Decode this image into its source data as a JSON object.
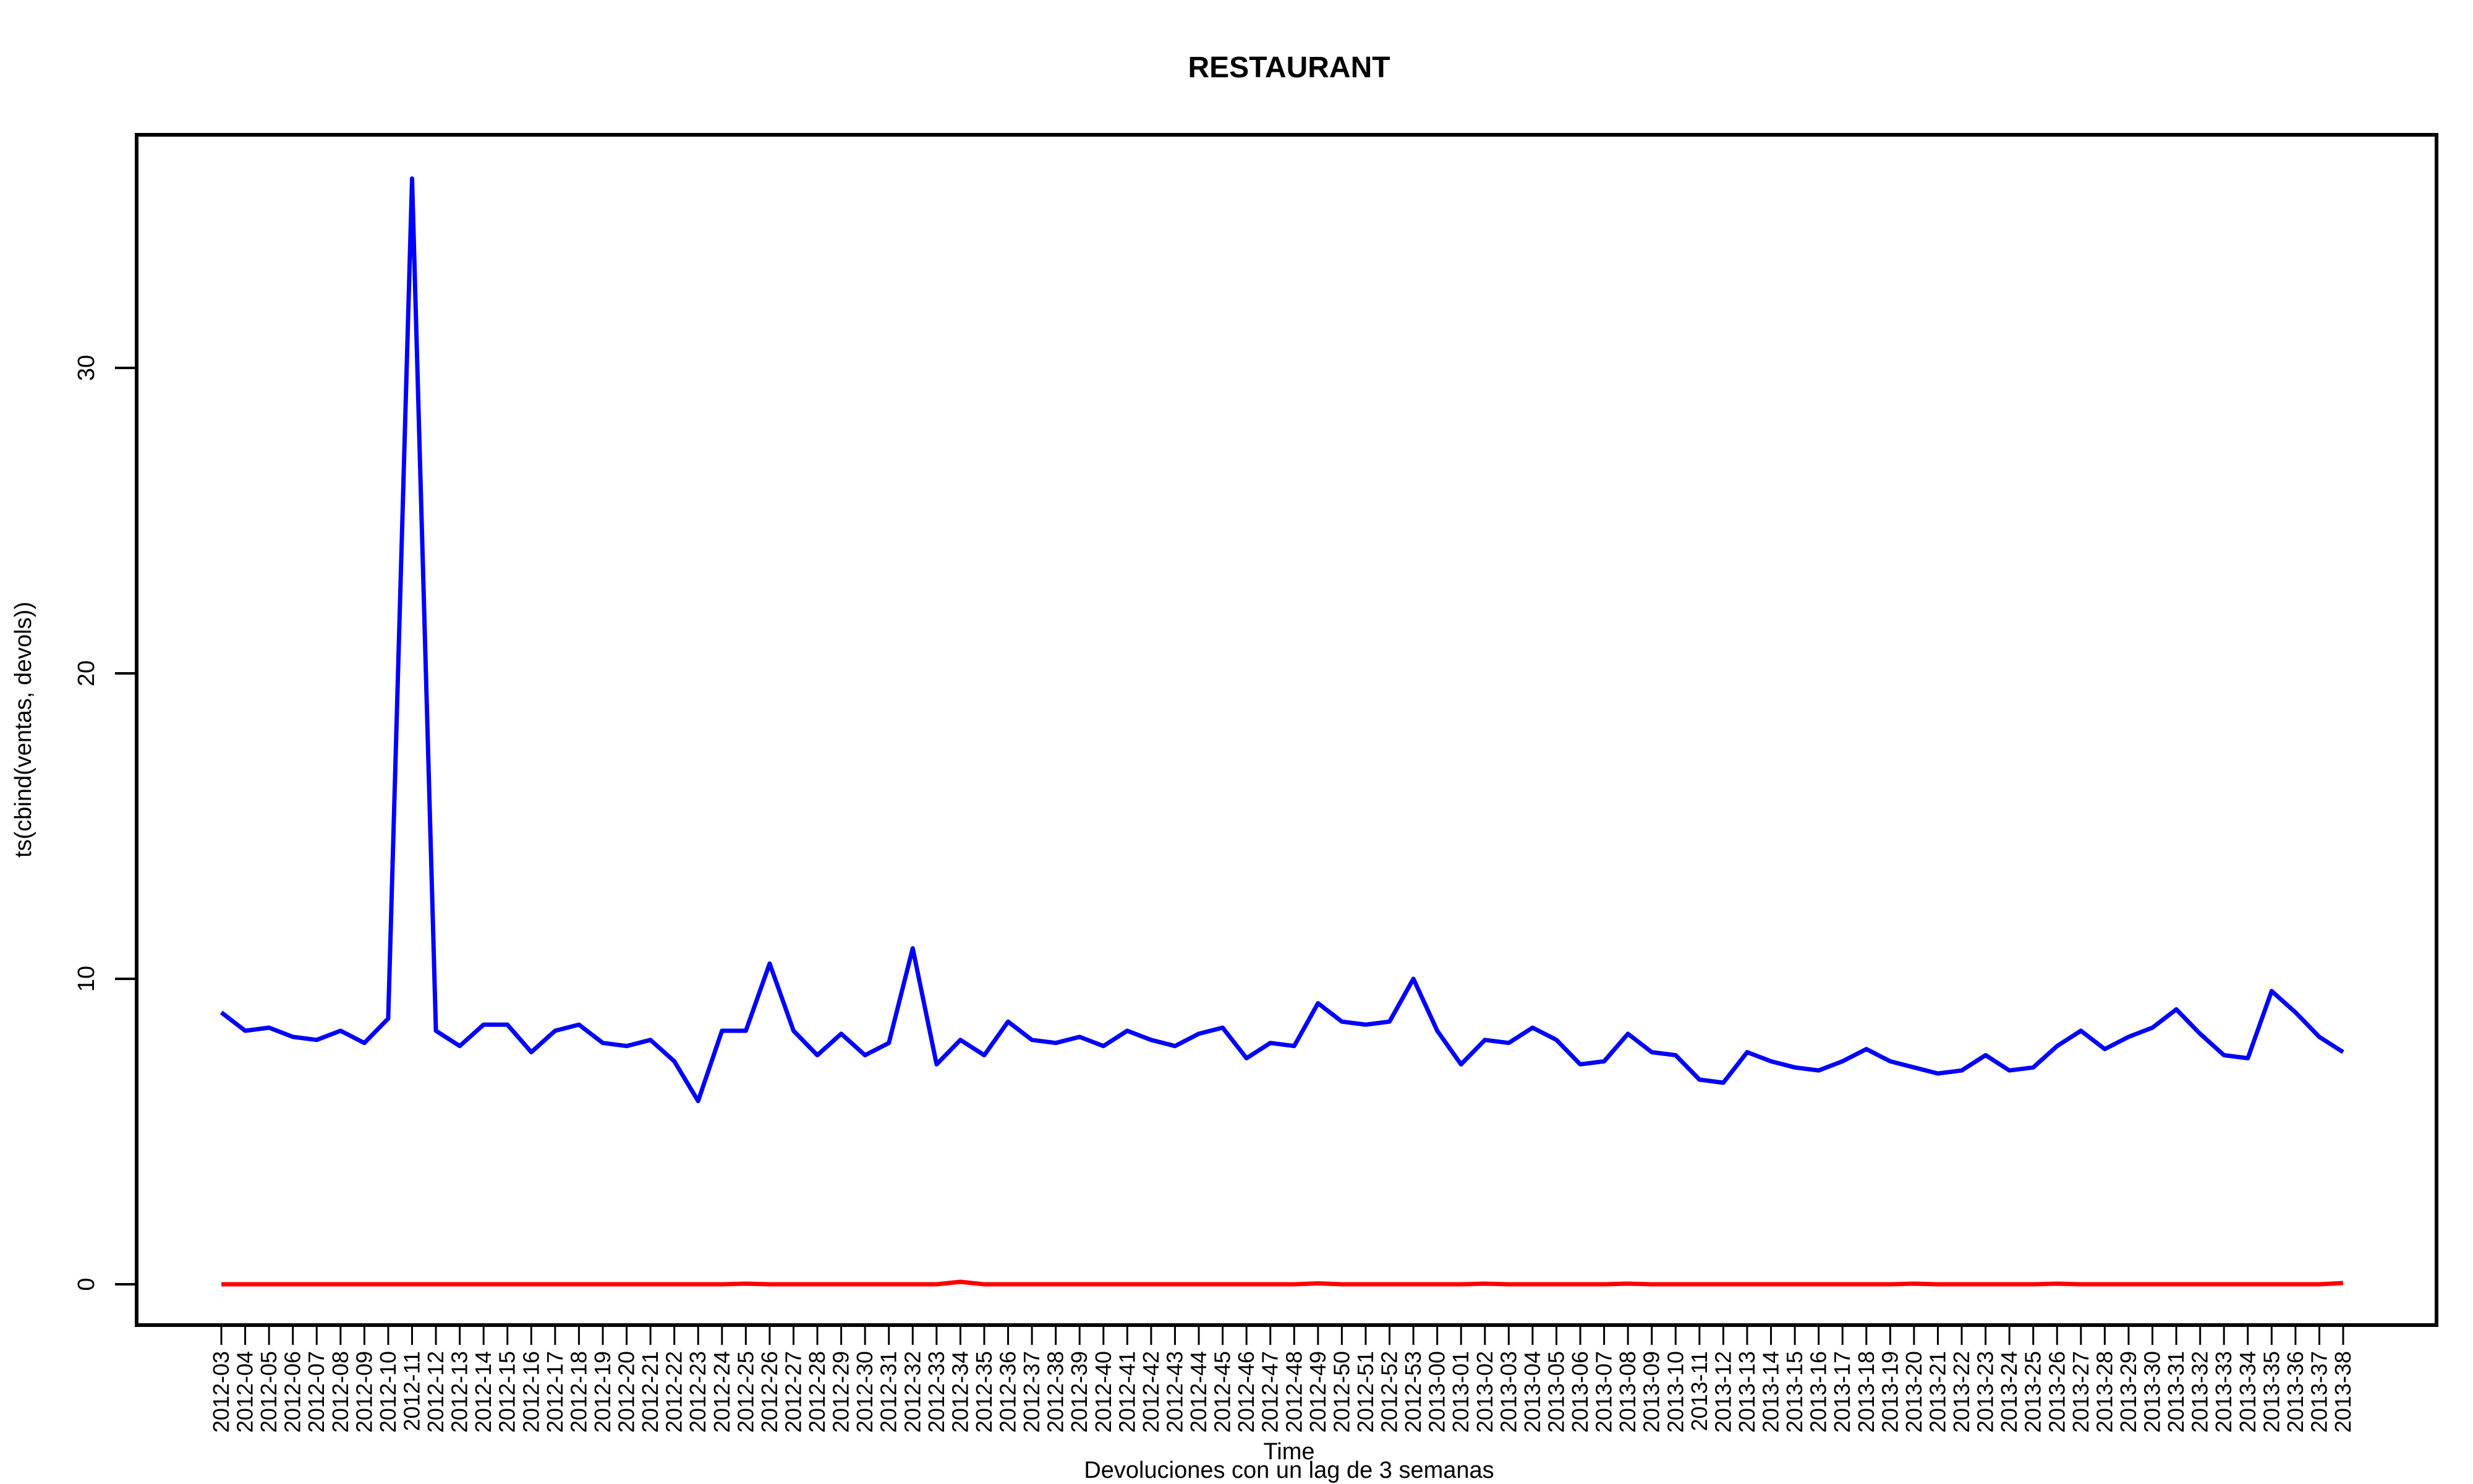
{
  "chart_data": {
    "type": "line",
    "title": "RESTAURANT",
    "xlabel": "Time",
    "subtitle": "Devoluciones con un lag de 3 semanas",
    "ylabel": "ts(cbind(ventas, devols))",
    "ylim": [
      0,
      36.3
    ],
    "yticks": [
      0,
      10,
      20,
      30
    ],
    "grid": false,
    "categories": [
      "2012-03",
      "2012-04",
      "2012-05",
      "2012-06",
      "2012-07",
      "2012-08",
      "2012-09",
      "2012-10",
      "2012-11",
      "2012-12",
      "2012-13",
      "2012-14",
      "2012-15",
      "2012-16",
      "2012-17",
      "2012-18",
      "2012-19",
      "2012-20",
      "2012-21",
      "2012-22",
      "2012-23",
      "2012-24",
      "2012-25",
      "2012-26",
      "2012-27",
      "2012-28",
      "2012-29",
      "2012-30",
      "2012-31",
      "2012-32",
      "2012-33",
      "2012-34",
      "2012-35",
      "2012-36",
      "2012-37",
      "2012-38",
      "2012-39",
      "2012-40",
      "2012-41",
      "2012-42",
      "2012-43",
      "2012-44",
      "2012-45",
      "2012-46",
      "2012-47",
      "2012-48",
      "2012-49",
      "2012-50",
      "2012-51",
      "2012-52",
      "2012-53",
      "2013-00",
      "2013-01",
      "2013-02",
      "2013-03",
      "2013-04",
      "2013-05",
      "2013-06",
      "2013-07",
      "2013-08",
      "2013-09",
      "2013-10",
      "2013-11",
      "2013-12",
      "2013-13",
      "2013-14",
      "2013-15",
      "2013-16",
      "2013-17",
      "2013-18",
      "2013-19",
      "2013-20",
      "2013-21",
      "2013-22",
      "2013-23",
      "2013-24",
      "2013-25",
      "2013-26",
      "2013-27",
      "2013-28",
      "2013-29",
      "2013-30",
      "2013-31",
      "2013-32",
      "2013-33",
      "2013-34",
      "2013-35",
      "2013-36",
      "2013-37",
      "2013-38"
    ],
    "series": [
      {
        "color": "#0000ff",
        "values": [
          8.9,
          8.3,
          8.4,
          8.1,
          8.0,
          8.3,
          7.9,
          8.7,
          36.2,
          8.3,
          7.8,
          8.5,
          8.5,
          7.6,
          8.3,
          8.5,
          7.9,
          7.8,
          8.0,
          7.3,
          6.0,
          8.3,
          8.3,
          10.5,
          8.3,
          7.5,
          8.2,
          7.5,
          7.9,
          11.0,
          7.2,
          8.0,
          7.5,
          8.6,
          8.0,
          7.9,
          8.1,
          7.8,
          8.3,
          8.0,
          7.8,
          8.2,
          8.4,
          7.4,
          7.9,
          7.8,
          9.2,
          8.6,
          8.5,
          8.6,
          10.0,
          8.3,
          7.2,
          8.0,
          7.9,
          8.4,
          8.0,
          7.2,
          7.3,
          8.2,
          7.6,
          7.5,
          6.7,
          6.6,
          7.6,
          7.3,
          7.1,
          7.0,
          7.3,
          7.7,
          7.3,
          7.1,
          6.9,
          7.0,
          7.5,
          7.0,
          7.1,
          7.8,
          8.3,
          7.7,
          8.1,
          8.4,
          9.0,
          8.2,
          7.5,
          7.4,
          9.6,
          8.9,
          8.1,
          7.6
        ]
      },
      {
        "color": "#ff0000",
        "values": [
          0,
          0,
          0,
          0,
          0,
          0,
          0,
          0,
          0,
          0,
          0,
          0,
          0,
          0,
          0,
          0,
          0,
          0,
          0,
          0,
          0,
          0,
          0.02,
          0,
          0,
          0,
          0,
          0,
          0,
          0,
          0,
          0.08,
          0,
          0,
          0,
          0,
          0,
          0,
          0,
          0,
          0,
          0,
          0,
          0,
          0,
          0,
          0.03,
          0,
          0,
          0,
          0,
          0,
          0,
          0.02,
          0,
          0,
          0,
          0,
          0,
          0.02,
          0,
          0,
          0,
          0,
          0,
          0,
          0,
          0,
          0,
          0,
          0,
          0.02,
          0,
          0,
          0,
          0,
          0,
          0.02,
          0,
          0,
          0,
          0,
          0,
          0,
          0,
          0,
          0,
          0,
          0,
          0.04
        ]
      }
    ]
  }
}
